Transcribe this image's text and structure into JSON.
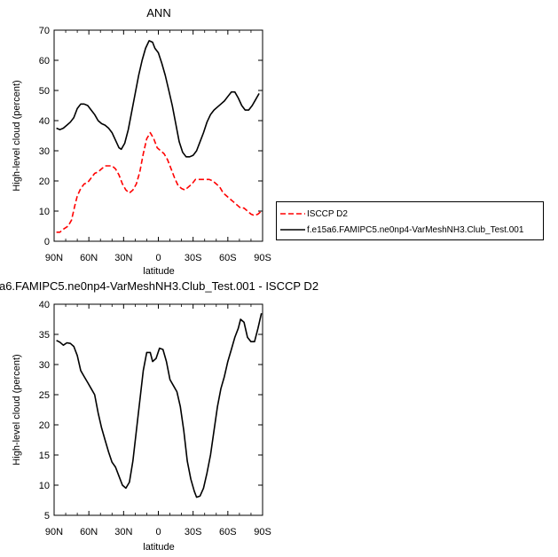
{
  "chart_data": [
    {
      "type": "line",
      "title": "ANN",
      "xlabel": "latitude",
      "ylabel": "High-level cloud (percent)",
      "xlim": [
        90,
        -90
      ],
      "ylim": [
        0,
        70
      ],
      "xticks": [
        90,
        60,
        30,
        0,
        -30,
        -60,
        -90
      ],
      "xticklabels": [
        "90N",
        "60N",
        "30N",
        "0",
        "30S",
        "60S",
        "90S"
      ],
      "yticks": [
        0,
        10,
        20,
        30,
        40,
        50,
        60,
        70
      ],
      "grid": false,
      "legend": "right",
      "series": [
        {
          "name": "ISCCP D2",
          "color": "#ff0000",
          "dash": "dashed",
          "points": [
            [
              88,
              3
            ],
            [
              85,
              3
            ],
            [
              82,
              4
            ],
            [
              78,
              5
            ],
            [
              75,
              7
            ],
            [
              72,
              12
            ],
            [
              70,
              15
            ],
            [
              67,
              17.5
            ],
            [
              64,
              19
            ],
            [
              61,
              19.5
            ],
            [
              58,
              21
            ],
            [
              55,
              22.5
            ],
            [
              52,
              23
            ],
            [
              49,
              24
            ],
            [
              46,
              25
            ],
            [
              43,
              25
            ],
            [
              40,
              25
            ],
            [
              37,
              24
            ],
            [
              34,
              22
            ],
            [
              31,
              19
            ],
            [
              28,
              17
            ],
            [
              25,
              16
            ],
            [
              22,
              17
            ],
            [
              19,
              19
            ],
            [
              16,
              23
            ],
            [
              13,
              29
            ],
            [
              10,
              34
            ],
            [
              7,
              36
            ],
            [
              4,
              34
            ],
            [
              1,
              31
            ],
            [
              -2,
              30
            ],
            [
              -5,
              29
            ],
            [
              -8,
              27
            ],
            [
              -11,
              24
            ],
            [
              -14,
              21
            ],
            [
              -17,
              18.5
            ],
            [
              -20,
              17.5
            ],
            [
              -23,
              17
            ],
            [
              -26,
              18
            ],
            [
              -29,
              19
            ],
            [
              -32,
              20.5
            ],
            [
              -35,
              20.5
            ],
            [
              -38,
              20.5
            ],
            [
              -41,
              20.5
            ],
            [
              -44,
              20.5
            ],
            [
              -47,
              20
            ],
            [
              -50,
              19
            ],
            [
              -53,
              18
            ],
            [
              -56,
              16
            ],
            [
              -59,
              15
            ],
            [
              -62,
              14
            ],
            [
              -65,
              13
            ],
            [
              -68,
              12
            ],
            [
              -71,
              11
            ],
            [
              -74,
              11
            ],
            [
              -77,
              10
            ],
            [
              -80,
              9
            ],
            [
              -83,
              8.5
            ],
            [
              -86,
              9
            ],
            [
              -89,
              10
            ]
          ]
        },
        {
          "name": "f.e15a6.FAMIPC5.ne0np4-VarMeshNH3.Club_Test.001",
          "color": "#000000",
          "dash": "solid",
          "points": [
            [
              88,
              37.5
            ],
            [
              85,
              37
            ],
            [
              82,
              37.5
            ],
            [
              79,
              38.5
            ],
            [
              76,
              39.5
            ],
            [
              73,
              41
            ],
            [
              70,
              44
            ],
            [
              67,
              45.5
            ],
            [
              64,
              45.5
            ],
            [
              61,
              45
            ],
            [
              58,
              43.5
            ],
            [
              55,
              42
            ],
            [
              52,
              40
            ],
            [
              49,
              39
            ],
            [
              46,
              38.5
            ],
            [
              43,
              37.5
            ],
            [
              40,
              36
            ],
            [
              37,
              33.5
            ],
            [
              34,
              31
            ],
            [
              32,
              30.5
            ],
            [
              29,
              32.5
            ],
            [
              26,
              37
            ],
            [
              23,
              43
            ],
            [
              20,
              49
            ],
            [
              17,
              55
            ],
            [
              14,
              60
            ],
            [
              11,
              64
            ],
            [
              8,
              66.5
            ],
            [
              5,
              66
            ],
            [
              3,
              64
            ],
            [
              0,
              62.5
            ],
            [
              -3,
              59
            ],
            [
              -6,
              55
            ],
            [
              -9,
              50
            ],
            [
              -12,
              45
            ],
            [
              -15,
              39
            ],
            [
              -18,
              33
            ],
            [
              -21,
              29.5
            ],
            [
              -24,
              28
            ],
            [
              -27,
              28
            ],
            [
              -30,
              28.5
            ],
            [
              -33,
              30
            ],
            [
              -36,
              33
            ],
            [
              -39,
              36
            ],
            [
              -42,
              39.5
            ],
            [
              -45,
              42
            ],
            [
              -48,
              43.5
            ],
            [
              -51,
              44.5
            ],
            [
              -54,
              45.5
            ],
            [
              -57,
              46.5
            ],
            [
              -60,
              48
            ],
            [
              -63,
              49.5
            ],
            [
              -66,
              49.5
            ],
            [
              -69,
              47.5
            ],
            [
              -72,
              45
            ],
            [
              -75,
              43.5
            ],
            [
              -78,
              43.5
            ],
            [
              -81,
              45
            ],
            [
              -84,
              47
            ],
            [
              -87,
              49
            ]
          ]
        }
      ]
    },
    {
      "type": "line",
      "title": "a6.FAMIPC5.ne0np4-VarMeshNH3.Club_Test.001 - ISCCP D2",
      "xlabel": "latitude",
      "ylabel": "High-level cloud (percent)",
      "xlim": [
        90,
        -90
      ],
      "ylim": [
        5,
        40
      ],
      "xticks": [
        90,
        60,
        30,
        0,
        -30,
        -60,
        -90
      ],
      "xticklabels": [
        "90N",
        "60N",
        "30N",
        "0",
        "30S",
        "60S",
        "90S"
      ],
      "yticks": [
        5,
        10,
        15,
        20,
        25,
        30,
        35,
        40
      ],
      "grid": false,
      "series": [
        {
          "color": "#000000",
          "dash": "solid",
          "points": [
            [
              88,
              34
            ],
            [
              85,
              33.7
            ],
            [
              82,
              33.2
            ],
            [
              79,
              33.6
            ],
            [
              76,
              33.5
            ],
            [
              73,
              33
            ],
            [
              70,
              31.5
            ],
            [
              67,
              29
            ],
            [
              64,
              28
            ],
            [
              61,
              27
            ],
            [
              58,
              26
            ],
            [
              55,
              25
            ],
            [
              52,
              22
            ],
            [
              49,
              19.5
            ],
            [
              46,
              17.5
            ],
            [
              43,
              15.5
            ],
            [
              40,
              13.8
            ],
            [
              37,
              13
            ],
            [
              34,
              11.5
            ],
            [
              31,
              10
            ],
            [
              28,
              9.5
            ],
            [
              25,
              10.5
            ],
            [
              22,
              14
            ],
            [
              19,
              19
            ],
            [
              16,
              24
            ],
            [
              13,
              29
            ],
            [
              10,
              32
            ],
            [
              7,
              32
            ],
            [
              5,
              30.5
            ],
            [
              2,
              31
            ],
            [
              -1,
              32.7
            ],
            [
              -4,
              32.5
            ],
            [
              -7,
              30.5
            ],
            [
              -10,
              27.5
            ],
            [
              -13,
              26.5
            ],
            [
              -16,
              25.5
            ],
            [
              -19,
              23
            ],
            [
              -22,
              19
            ],
            [
              -25,
              14
            ],
            [
              -28,
              11
            ],
            [
              -31,
              9
            ],
            [
              -33,
              8
            ],
            [
              -36,
              8.2
            ],
            [
              -39,
              9.5
            ],
            [
              -42,
              12
            ],
            [
              -45,
              15
            ],
            [
              -48,
              19
            ],
            [
              -51,
              23
            ],
            [
              -54,
              26
            ],
            [
              -57,
              28
            ],
            [
              -60,
              30.5
            ],
            [
              -63,
              32.5
            ],
            [
              -66,
              34.5
            ],
            [
              -69,
              36
            ],
            [
              -71,
              37.5
            ],
            [
              -74,
              37
            ],
            [
              -77,
              34.5
            ],
            [
              -80,
              33.8
            ],
            [
              -83,
              33.8
            ],
            [
              -86,
              36
            ],
            [
              -89,
              38.5
            ]
          ]
        }
      ]
    }
  ]
}
